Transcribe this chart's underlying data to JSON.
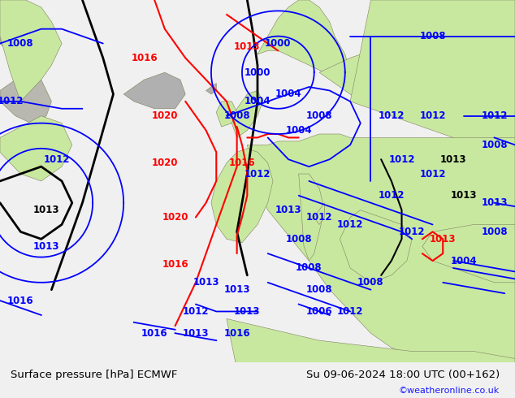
{
  "title_left": "Surface pressure [hPa] ECMWF",
  "title_right": "Su 09-06-2024 18:00 UTC (00+162)",
  "credit": "©weatheronline.co.uk",
  "ocean_color": "#e0e8f0",
  "land_color": "#c8e8a0",
  "gray_color": "#b0b0b0",
  "bottom_bar_color": "#f0f0f0",
  "fig_width": 6.34,
  "fig_height": 4.9,
  "dpi": 100
}
